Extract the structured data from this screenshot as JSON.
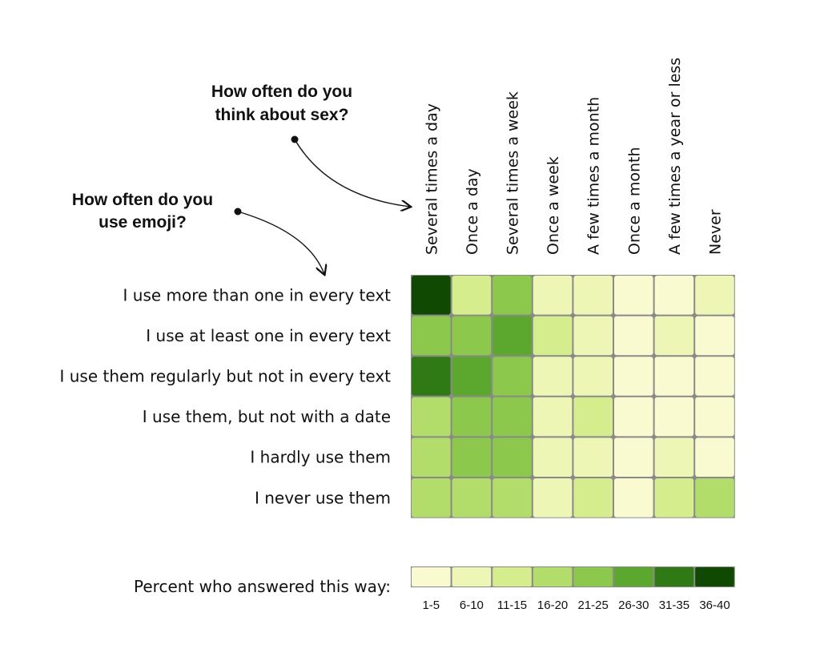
{
  "chart_data": {
    "type": "heatmap",
    "x_question": {
      "line1": "How often do you",
      "line2": "think about sex?"
    },
    "y_question": {
      "line1": "How often do you",
      "line2": "use emoji?"
    },
    "columns": [
      "Several times a day",
      "Once a day",
      "Several times a week",
      "Once a week",
      "A few times a month",
      "Once a month",
      "A few times a year or less",
      "Never"
    ],
    "rows": [
      "I use more than one in every text",
      "I use at least one in every text",
      "I use them regularly but not in every text",
      "I use them, but not with a date",
      "I hardly use them",
      "I never use them"
    ],
    "values": [
      [
        38,
        13,
        22,
        8,
        8,
        3,
        3,
        8
      ],
      [
        22,
        23,
        28,
        13,
        8,
        3,
        8,
        3
      ],
      [
        33,
        28,
        23,
        8,
        8,
        3,
        3,
        3
      ],
      [
        18,
        22,
        23,
        8,
        13,
        3,
        3,
        3
      ],
      [
        18,
        22,
        23,
        8,
        8,
        3,
        8,
        3
      ],
      [
        18,
        18,
        18,
        8,
        13,
        3,
        13,
        18
      ]
    ],
    "value_unit": "percent",
    "legend": {
      "title": "Percent who answered this way:",
      "bins": [
        {
          "label": "1-5",
          "min": 1,
          "max": 5,
          "color": "#fafad0"
        },
        {
          "label": "6-10",
          "min": 6,
          "max": 10,
          "color": "#eef6b6"
        },
        {
          "label": "11-15",
          "min": 11,
          "max": 15,
          "color": "#d6ed8e"
        },
        {
          "label": "16-20",
          "min": 16,
          "max": 20,
          "color": "#b2dd6a"
        },
        {
          "label": "21-25",
          "min": 21,
          "max": 25,
          "color": "#8cc84c"
        },
        {
          "label": "26-30",
          "min": 26,
          "max": 30,
          "color": "#5ca82e"
        },
        {
          "label": "31-35",
          "min": 31,
          "max": 35,
          "color": "#2f7a14"
        },
        {
          "label": "36-40",
          "min": 36,
          "max": 40,
          "color": "#104a02"
        }
      ]
    },
    "grid_color": "#8a8a8a"
  }
}
